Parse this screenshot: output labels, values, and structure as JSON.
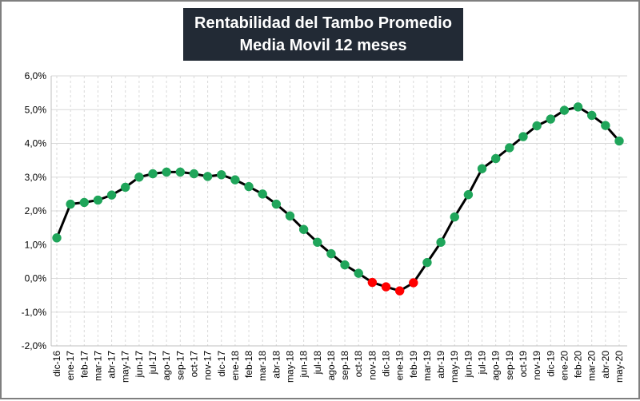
{
  "chart_data": {
    "type": "line",
    "title": "Rentabilidad del Tambo Promedio",
    "subtitle": "Media Movil 12 meses",
    "xlabel": "",
    "ylabel": "",
    "ylim": [
      -2,
      6
    ],
    "y_ticks": [
      "-2,0%",
      "-1,0%",
      "0,0%",
      "1,0%",
      "2,0%",
      "3,0%",
      "4,0%",
      "5,0%",
      "6,0%"
    ],
    "y_tick_values": [
      -2,
      -1,
      0,
      1,
      2,
      3,
      4,
      5,
      6
    ],
    "grid": true,
    "legend": "none",
    "categories": [
      "dic-16",
      "ene-17",
      "feb-17",
      "mar-17",
      "abr-17",
      "may-17",
      "jun-17",
      "jul-17",
      "ago-17",
      "sep-17",
      "oct-17",
      "nov-17",
      "dic-17",
      "ene-18",
      "feb-18",
      "mar-18",
      "abr-18",
      "may-18",
      "jun-18",
      "jul-18",
      "ago-18",
      "sep-18",
      "oct-18",
      "nov-18",
      "dic-18",
      "ene-19",
      "feb-19",
      "mar-19",
      "abr-19",
      "may-19",
      "jun-19",
      "jul-19",
      "ago-19",
      "sep-19",
      "oct-19",
      "nov-19",
      "dic-19",
      "ene-20",
      "feb-20",
      "mar-20",
      "abr-20",
      "may-20"
    ],
    "series": [
      {
        "values": [
          1.2,
          2.2,
          2.25,
          2.32,
          2.47,
          2.7,
          3.0,
          3.1,
          3.15,
          3.15,
          3.1,
          3.02,
          3.07,
          2.92,
          2.72,
          2.5,
          2.2,
          1.85,
          1.45,
          1.07,
          0.73,
          0.4,
          0.15,
          -0.12,
          -0.25,
          -0.37,
          -0.13,
          0.47,
          1.07,
          1.82,
          2.48,
          3.25,
          3.55,
          3.87,
          4.2,
          4.52,
          4.72,
          4.98,
          5.08,
          4.83,
          4.53,
          4.07
        ]
      }
    ],
    "colors": {
      "line": "#000000",
      "positive_marker": "#1fa55a",
      "negative_marker": "#ff0000",
      "grid": "#d9d9d9",
      "title_bg": "#222a35",
      "title_text": "#ffffff"
    }
  }
}
